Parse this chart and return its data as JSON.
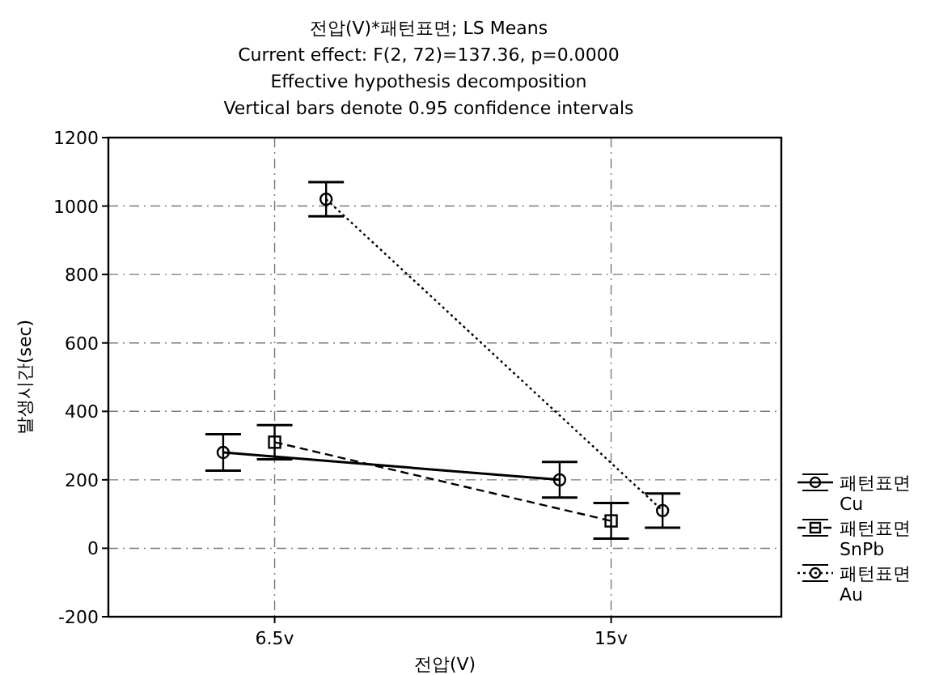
{
  "chart_data": {
    "type": "line",
    "title": "전압(V)*패턴표면; LS Means",
    "subtitle": "Current effect: F(2, 72)=137.36, p=0.0000",
    "annotations": [
      "Effective hypothesis decomposition",
      "Vertical bars denote 0.95 confidence intervals"
    ],
    "xlabel": "전압(V)",
    "ylabel": "발생시간(sec)",
    "xlim": [
      2.3,
      19.3
    ],
    "xticks": [
      {
        "value": 6.5,
        "label": "6.5v"
      },
      {
        "value": 15,
        "label": "15v"
      }
    ],
    "series": [
      {
        "name": "패턴표면 Cu",
        "color": "#000000",
        "marker": "circle",
        "line_style": "solid",
        "x": [
          5.2,
          13.7
        ],
        "values": [
          280,
          200
        ],
        "errors": [
          53,
          52
        ]
      },
      {
        "name": "패턴표면 SnPb",
        "color": "#000000",
        "marker": "square",
        "line_style": "dashed",
        "x": [
          6.5,
          15
        ],
        "values": [
          310,
          80
        ],
        "errors": [
          50,
          52
        ]
      },
      {
        "name": "패턴표면 Au",
        "color": "#000000",
        "marker": "circle",
        "line_style": "dotted",
        "x": [
          7.8,
          16.3
        ],
        "values": [
          1020,
          110
        ],
        "errors": [
          50,
          50
        ]
      }
    ],
    "ylim": [
      -200,
      1200
    ],
    "yticks": [
      -200,
      0,
      200,
      400,
      600,
      800,
      1000,
      1200
    ],
    "grid": true,
    "legend": "right"
  }
}
